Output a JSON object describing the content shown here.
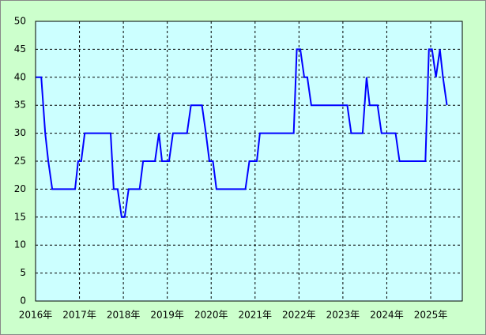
{
  "chart_data": {
    "type": "line",
    "x": [
      2016.0,
      2016.13,
      2016.22,
      2016.29,
      2016.38,
      2016.9,
      2016.97,
      2017.04,
      2017.12,
      2017.71,
      2017.78,
      2017.87,
      2017.96,
      2018.03,
      2018.12,
      2018.37,
      2018.45,
      2018.72,
      2018.81,
      2018.88,
      2019.04,
      2019.13,
      2019.45,
      2019.54,
      2019.79,
      2019.88,
      2019.96,
      2020.04,
      2020.12,
      2020.78,
      2020.87,
      2021.04,
      2021.11,
      2021.88,
      2021.95,
      2022.03,
      2022.12,
      2022.19,
      2022.28,
      2023.1,
      2023.19,
      2023.45,
      2023.54,
      2023.61,
      2023.79,
      2023.88,
      2024.2,
      2024.29,
      2024.88,
      2024.92,
      2024.96,
      2025.03,
      2025.12,
      2025.21,
      2025.28,
      2025.37
    ],
    "series": [
      {
        "color": "#0000ff",
        "values": [
          40,
          40,
          30,
          25,
          20,
          20,
          25,
          25,
          30,
          30,
          20,
          20,
          15,
          15,
          20,
          20,
          25,
          25,
          30,
          25,
          25,
          30,
          30,
          35,
          35,
          30,
          25,
          25,
          20,
          20,
          25,
          25,
          30,
          30,
          45,
          45,
          40,
          40,
          35,
          35,
          30,
          30,
          40,
          35,
          35,
          30,
          30,
          25,
          25,
          35,
          45,
          45,
          40,
          45,
          40,
          35
        ]
      }
    ],
    "xlim": [
      2016,
      2025.72
    ],
    "xticks": [
      {
        "value": 2016,
        "label": "2016年"
      },
      {
        "value": 2017,
        "label": "2017年"
      },
      {
        "value": 2018,
        "label": "2018年"
      },
      {
        "value": 2019,
        "label": "2019年"
      },
      {
        "value": 2020,
        "label": "2020年"
      },
      {
        "value": 2021,
        "label": "2021年"
      },
      {
        "value": 2022,
        "label": "2022年"
      },
      {
        "value": 2023,
        "label": "2023年"
      },
      {
        "value": 2024,
        "label": "2024年"
      },
      {
        "value": 2025,
        "label": "2025年"
      }
    ],
    "ylim": [
      0,
      50
    ],
    "yticks": [
      0,
      5,
      10,
      15,
      20,
      25,
      30,
      35,
      40,
      45,
      50
    ],
    "grid": true
  }
}
